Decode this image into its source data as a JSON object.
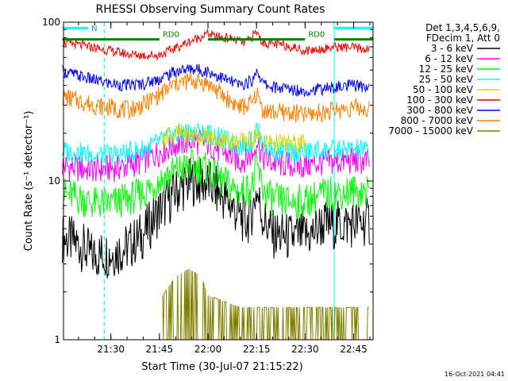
{
  "chart_data": {
    "type": "line",
    "title": "RHESSI Observing Summary Count Rates",
    "xlabel": "Start Time (30-Jul-07 21:15:22)",
    "ylabel": "Count Rate (s⁻¹ detector⁻¹)",
    "y_scale": "log",
    "ylim": [
      1,
      100
    ],
    "xlim": [
      "21:15:22",
      "22:51:00"
    ],
    "x_tick_labels": [
      "21:30",
      "21:45",
      "22:00",
      "22:15",
      "22:30",
      "22:45"
    ],
    "x_ticks": [
      "21:30",
      "21:45",
      "22:00",
      "22:15",
      "22:30",
      "22:45"
    ],
    "y_tick_labels": [
      "1",
      "10",
      "100"
    ],
    "y_ticks": [
      1,
      10,
      100
    ],
    "grid": false,
    "legend_position": "right",
    "legend_header": [
      "Det 1,3,4,5,6,9,",
      "FDecim 1, Att 0"
    ],
    "timestamp": "16-Oct-2021 04:41",
    "series": [
      {
        "name": "3 - 6 keV",
        "color": "#000000",
        "x": [
          "21:15",
          "21:20",
          "21:24",
          "21:30",
          "21:35",
          "21:40",
          "21:45",
          "21:50",
          "21:55",
          "22:00",
          "22:03",
          "22:06",
          "22:09",
          "22:12",
          "22:14",
          "22:15",
          "22:17",
          "22:20",
          "22:25",
          "22:30",
          "22:32",
          "22:35",
          "22:40",
          "22:45",
          "22:50"
        ],
        "values": [
          4.4,
          4.0,
          3.4,
          3.5,
          3.8,
          4.6,
          6.5,
          8.5,
          10.0,
          9.6,
          8.5,
          7.5,
          6.3,
          5.5,
          6.8,
          8.8,
          5.8,
          4.6,
          4.4,
          4.5,
          4.6,
          5.3,
          5.3,
          5.4,
          5.5
        ]
      },
      {
        "name": "6 - 12 keV",
        "color": "#ff00ff",
        "x": [
          "21:15",
          "21:20",
          "21:25",
          "21:30",
          "21:35",
          "21:40",
          "21:45",
          "21:50",
          "21:55",
          "22:00",
          "22:05",
          "22:10",
          "22:14",
          "22:15",
          "22:17",
          "22:20",
          "22:25",
          "22:30",
          "22:35",
          "22:40",
          "22:45",
          "22:50"
        ],
        "values": [
          12.5,
          12.0,
          11.8,
          12.0,
          12.4,
          13.4,
          15.2,
          17.0,
          18.0,
          17.2,
          15.0,
          13.4,
          14.8,
          18.5,
          14.0,
          13.0,
          12.6,
          12.5,
          13.0,
          13.2,
          13.4,
          13.2
        ]
      },
      {
        "name": "12 - 25 keV",
        "color": "#00ff00",
        "x": [
          "21:15",
          "21:20",
          "21:25",
          "21:30",
          "21:35",
          "21:40",
          "21:45",
          "21:50",
          "21:55",
          "22:00",
          "22:05",
          "22:10",
          "22:14",
          "22:15",
          "22:17",
          "22:20",
          "22:25",
          "22:30",
          "22:35",
          "22:40",
          "22:45",
          "22:50"
        ],
        "values": [
          8.4,
          7.8,
          7.2,
          7.2,
          7.6,
          8.4,
          10.0,
          11.6,
          12.4,
          11.8,
          9.8,
          8.4,
          9.4,
          12.8,
          8.8,
          7.6,
          7.4,
          7.4,
          8.2,
          8.4,
          8.6,
          8.6
        ]
      },
      {
        "name": "25 - 50 keV",
        "color": "#00ffff",
        "x": [
          "21:15",
          "21:20",
          "21:25",
          "21:30",
          "21:35",
          "21:40",
          "21:45",
          "21:50",
          "21:55",
          "22:00",
          "22:05",
          "22:10",
          "22:14",
          "22:15",
          "22:17",
          "22:20",
          "22:25",
          "22:30",
          "22:35",
          "22:40",
          "22:45",
          "22:50"
        ],
        "values": [
          15.5,
          15.0,
          14.6,
          14.6,
          15.0,
          15.8,
          17.6,
          19.5,
          20.5,
          19.8,
          18.0,
          16.6,
          18.0,
          21.5,
          17.0,
          15.6,
          15.2,
          15.2,
          15.6,
          15.6,
          15.8,
          15.6
        ]
      },
      {
        "name": "50 - 100 keV",
        "color": "#d7d700",
        "x": [
          "21:46",
          "21:50",
          "21:55",
          "22:00",
          "22:05",
          "22:10",
          "22:14",
          "22:15",
          "22:17",
          "22:20",
          "22:25",
          "22:30"
        ],
        "values": [
          18.5,
          20.0,
          19.5,
          18.8,
          18.0,
          17.6,
          18.4,
          20.0,
          17.8,
          17.4,
          17.2,
          17.0
        ]
      },
      {
        "name": "100 - 300 keV",
        "color": "#ff0000",
        "x": [
          "21:15",
          "21:20",
          "21:25",
          "21:30",
          "21:35",
          "21:40",
          "21:45",
          "22:00",
          "22:02",
          "22:05",
          "22:08",
          "22:11",
          "22:13",
          "22:15",
          "22:17",
          "22:20",
          "22:25",
          "22:30",
          "22:35",
          "22:40",
          "22:45",
          "22:50"
        ],
        "values": [
          75,
          72,
          69,
          66,
          63,
          62,
          62,
          85,
          81,
          80,
          78,
          74,
          78,
          87,
          74,
          73,
          71,
          66,
          68,
          70,
          69,
          67
        ]
      },
      {
        "name": "300 - 800 keV",
        "color": "#0000ff",
        "x": [
          "21:15",
          "21:20",
          "21:25",
          "21:30",
          "21:35",
          "21:40",
          "21:45",
          "21:50",
          "21:55",
          "22:00",
          "22:05",
          "22:10",
          "22:14",
          "22:15",
          "22:17",
          "22:20",
          "22:25",
          "22:30",
          "22:35",
          "22:40",
          "22:45",
          "22:50"
        ],
        "values": [
          49,
          46,
          43,
          41,
          40,
          41,
          44,
          49,
          51,
          49,
          44,
          40,
          43,
          51,
          41,
          39,
          38,
          37,
          38,
          39,
          40,
          39
        ]
      },
      {
        "name": "800 - 7000 keV",
        "color": "#ff8000",
        "x": [
          "21:15",
          "21:20",
          "21:25",
          "21:30",
          "21:35",
          "21:40",
          "21:45",
          "21:50",
          "21:55",
          "22:00",
          "22:05",
          "22:10",
          "22:14",
          "22:15",
          "22:17",
          "22:20",
          "22:25",
          "22:30",
          "22:35",
          "22:40",
          "22:45",
          "22:50"
        ],
        "values": [
          34,
          32,
          30,
          29,
          28,
          30,
          35,
          41,
          43,
          41,
          34,
          29,
          31,
          36,
          28,
          27,
          27,
          26,
          27,
          28,
          29,
          28
        ]
      },
      {
        "name": "7000 - 15000 keV",
        "color": "#808000",
        "x": [
          "21:46",
          "21:50",
          "21:54",
          "21:58",
          "22:00",
          "22:10",
          "22:20",
          "22:30",
          "22:40",
          "22:50"
        ],
        "values": [
          1.9,
          2.5,
          2.8,
          2.5,
          1.9,
          1.6,
          1.6,
          1.6,
          1.6,
          1.6
        ]
      }
    ],
    "annotations": {
      "attenuator_bars": [
        {
          "label": "RD0",
          "x_start": "21:15",
          "x_end": "21:45",
          "value": 78
        },
        {
          "label": "RD0",
          "x_start": "22:00",
          "x_end": "22:30",
          "value": 78
        },
        {
          "label": "",
          "x_start": "22:39",
          "x_end": "22:51",
          "value": 78
        }
      ],
      "night_bars": [
        {
          "label": "N",
          "x_start": "21:15",
          "x_end": "21:23",
          "value": 92
        },
        {
          "label": "",
          "x_start": "22:39",
          "x_end": "22:51",
          "value": 92
        }
      ],
      "solid_vlines": [
        "21:15:22",
        "22:39"
      ],
      "dashed_vlines": [
        "21:28",
        "22:51"
      ]
    }
  }
}
